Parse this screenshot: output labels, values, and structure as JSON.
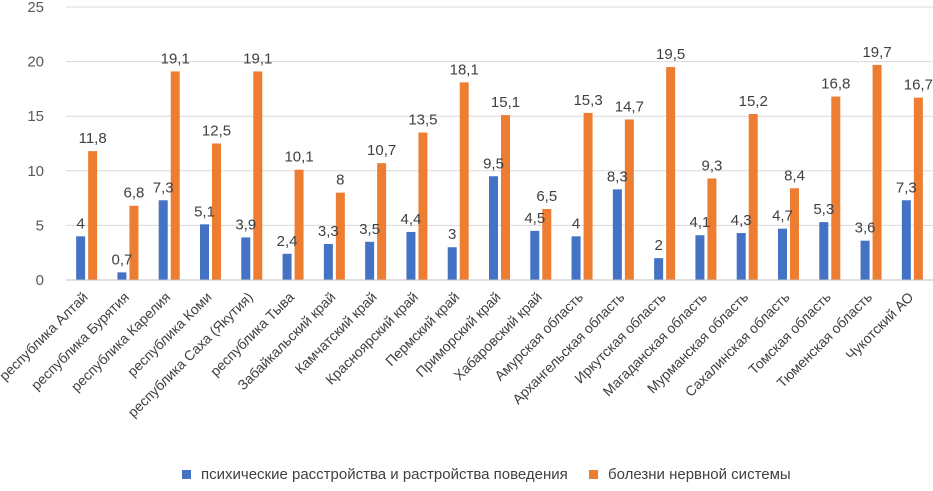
{
  "chart_data": {
    "type": "bar",
    "categories": [
      "республика Алтай",
      "республика Бурятия",
      "республика Карелия",
      "республика Коми",
      "республика Саха (Якутия)",
      "республика Тыва",
      "Забайкальский край",
      "Камчатский край",
      "Красноярский край",
      "Пермский край",
      "Приморский край",
      "Хабаровский край",
      "Амурская область",
      "Архангельская область",
      "Иркутская область",
      "Магаданская область",
      "Мурманская область",
      "Сахалинская область",
      "Томская область",
      "Тюменская область",
      "Чукотский АО"
    ],
    "series": [
      {
        "name": "психические расстройства и растройства поведения",
        "color": "#4472C4",
        "values": [
          4,
          0.7,
          7.3,
          5.1,
          3.9,
          2.4,
          3.3,
          3.5,
          4.4,
          3,
          9.5,
          4.5,
          4,
          8.3,
          2,
          4.1,
          4.3,
          4.7,
          5.3,
          3.6,
          7.3
        ],
        "labels": [
          "4",
          "0,7",
          "7,3",
          "5,1",
          "3,9",
          "2,4",
          "3,3",
          "3,5",
          "4,4",
          "3",
          "9,5",
          "4,5",
          "4",
          "8,3",
          "2",
          "4,1",
          "4,3",
          "4,7",
          "5,3",
          "3,6",
          "7,3"
        ]
      },
      {
        "name": "болезни нервной системы",
        "color": "#ED7D31",
        "values": [
          11.8,
          6.8,
          19.1,
          12.5,
          19.1,
          10.1,
          8,
          10.7,
          13.5,
          18.1,
          15.1,
          6.5,
          15.3,
          14.7,
          19.5,
          9.3,
          15.2,
          8.4,
          16.8,
          19.7,
          16.7
        ],
        "labels": [
          "11,8",
          "6,8",
          "19,1",
          "12,5",
          "19,1",
          "10,1",
          "8",
          "10,7",
          "13,5",
          "18,1",
          "15,1",
          "6,5",
          "15,3",
          "14,7",
          "19,5",
          "9,3",
          "15,2",
          "8,4",
          "16,8",
          "19,7",
          "16,7"
        ]
      }
    ],
    "yticks": [
      "0",
      "5",
      "10",
      "15",
      "20",
      "25"
    ],
    "ylim": [
      0,
      25
    ],
    "grid": true,
    "legend_position": "bottom",
    "title": "",
    "xlabel": "",
    "ylabel": ""
  }
}
